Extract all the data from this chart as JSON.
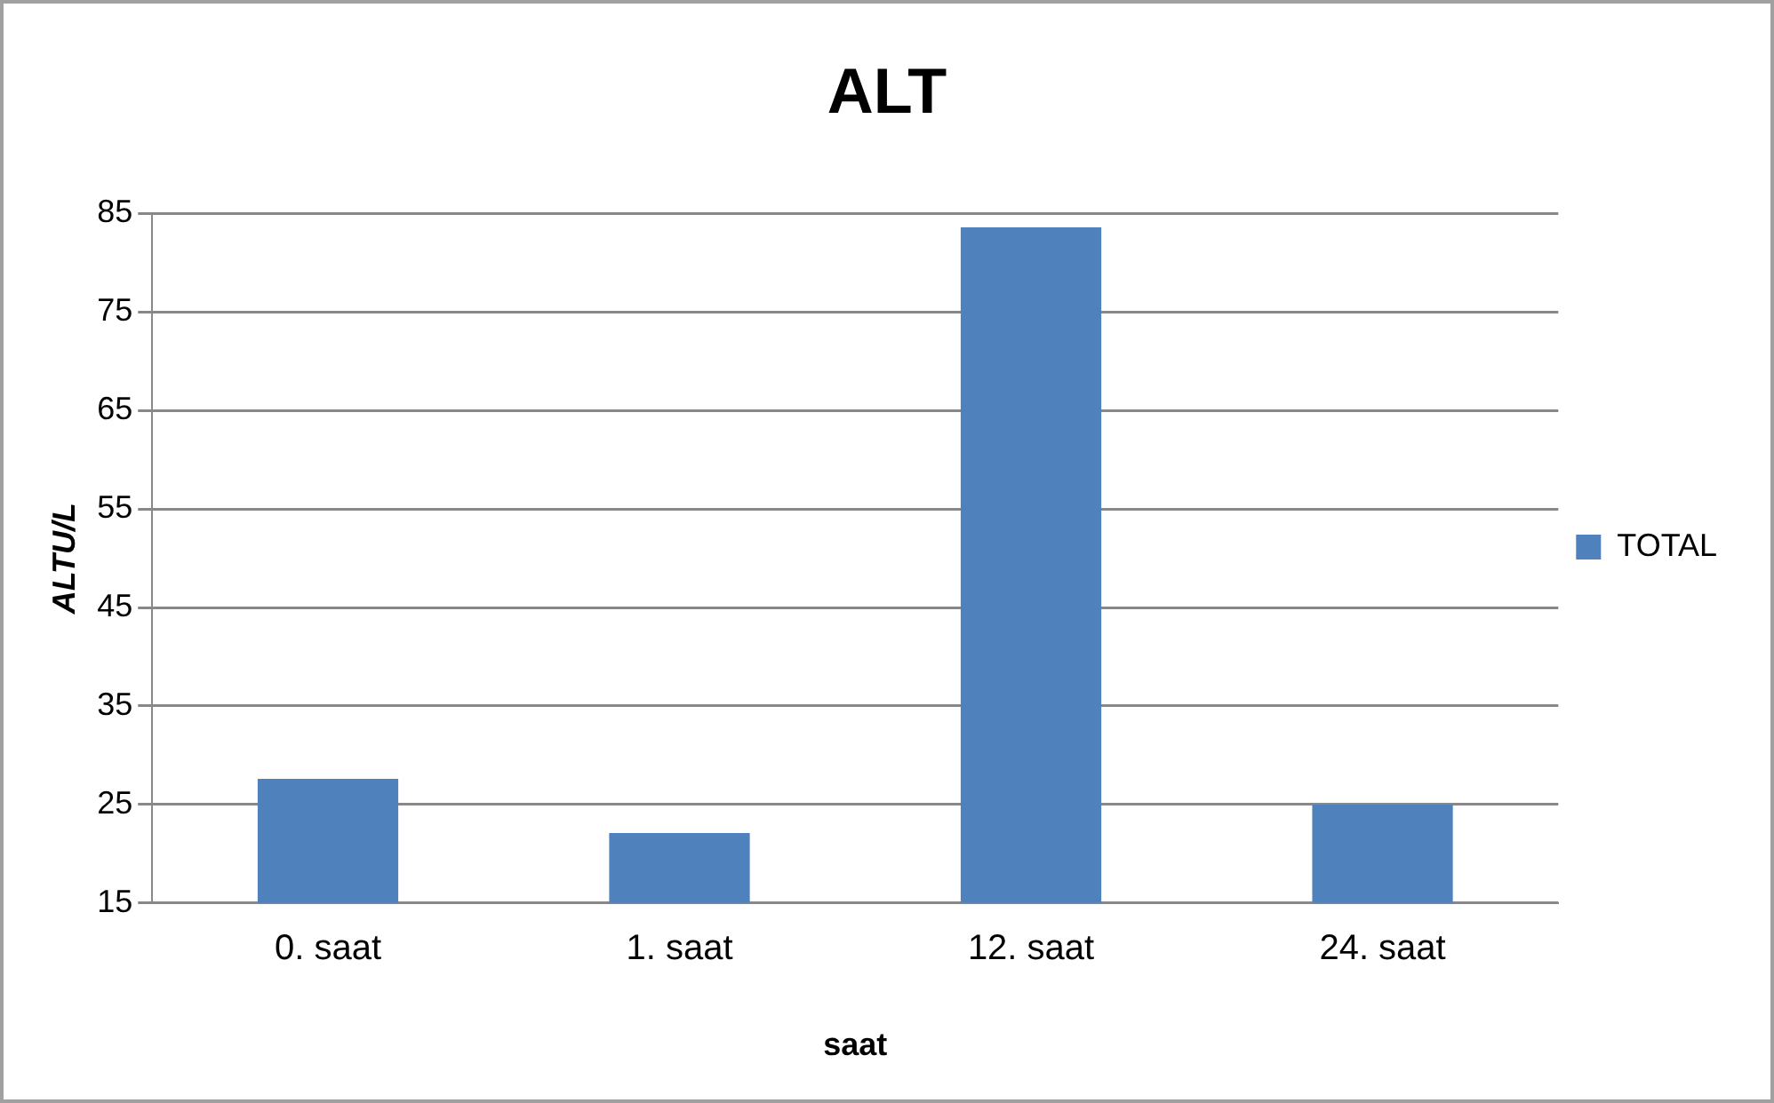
{
  "chart_data": {
    "type": "bar",
    "title": "ALT",
    "xlabel": "saat",
    "ylabel": "ALTU/L",
    "categories": [
      "0. saat",
      "1. saat",
      "12. saat",
      "24. saat"
    ],
    "series": [
      {
        "name": "TOTAL",
        "color": "#4f81bd",
        "values": [
          27.6,
          22.1,
          83.6,
          25.0
        ]
      }
    ],
    "ylim": [
      15,
      85
    ],
    "yticks": [
      15,
      25,
      35,
      45,
      55,
      65,
      75,
      85
    ],
    "grid": "y",
    "legend": "right"
  }
}
